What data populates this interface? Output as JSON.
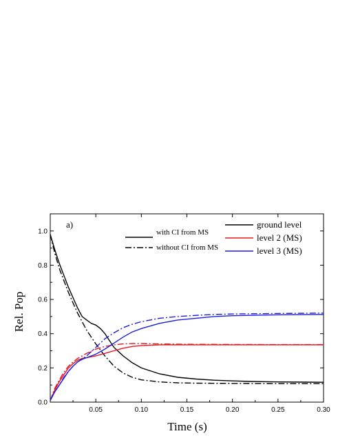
{
  "chart_data": {
    "type": "line",
    "panel_label": "a)",
    "xlabel": "Time (s)",
    "ylabel": "Rel. Pop",
    "xlim": [
      0,
      0.3
    ],
    "ylim": [
      0,
      1.1
    ],
    "xticks": [
      0.05,
      0.1,
      0.15,
      0.2,
      0.25,
      0.3
    ],
    "xtick_labels": [
      "0.05",
      "0.10",
      "0.15",
      "0.20",
      "0.25",
      "0.30"
    ],
    "yticks": [
      0.0,
      0.2,
      0.4,
      0.6,
      0.8,
      1.0
    ],
    "ytick_labels": [
      "0.0",
      "0.2",
      "0.4",
      "0.6",
      "0.8",
      "1.0"
    ],
    "grid": false,
    "style_legend": [
      {
        "label": "with CI from MS",
        "dash": "solid"
      },
      {
        "label": "without CI from MS",
        "dash": "dashdot"
      }
    ],
    "color_legend": [
      {
        "label": "ground level",
        "color": "#000000"
      },
      {
        "label": "level 2 (MS)",
        "color": "#e8141e"
      },
      {
        "label": "level 3 (MS)",
        "color": "#1c1ce0"
      }
    ],
    "series": [
      {
        "name": "ground level",
        "variant": "with CI from MS",
        "color": "#000000",
        "dash": "solid",
        "x": [
          0,
          0.005,
          0.01,
          0.015,
          0.02,
          0.025,
          0.03,
          0.035,
          0.04,
          0.045,
          0.05,
          0.055,
          0.06,
          0.065,
          0.07,
          0.08,
          0.09,
          0.1,
          0.12,
          0.14,
          0.16,
          0.18,
          0.2,
          0.22,
          0.25,
          0.28,
          0.3
        ],
        "y": [
          0.98,
          0.89,
          0.81,
          0.74,
          0.67,
          0.61,
          0.55,
          0.5,
          0.48,
          0.46,
          0.45,
          0.43,
          0.4,
          0.36,
          0.32,
          0.27,
          0.23,
          0.2,
          0.165,
          0.145,
          0.135,
          0.128,
          0.124,
          0.121,
          0.118,
          0.117,
          0.116
        ]
      },
      {
        "name": "ground level",
        "variant": "without CI from MS",
        "color": "#000000",
        "dash": "dashdot",
        "x": [
          0,
          0.005,
          0.01,
          0.015,
          0.02,
          0.025,
          0.03,
          0.035,
          0.04,
          0.05,
          0.06,
          0.07,
          0.08,
          0.09,
          0.1,
          0.12,
          0.14,
          0.16,
          0.18,
          0.2,
          0.25,
          0.3
        ],
        "y": [
          0.98,
          0.87,
          0.78,
          0.71,
          0.64,
          0.58,
          0.52,
          0.47,
          0.42,
          0.34,
          0.27,
          0.21,
          0.17,
          0.145,
          0.13,
          0.118,
          0.113,
          0.111,
          0.11,
          0.109,
          0.108,
          0.108
        ]
      },
      {
        "name": "level 2 (MS)",
        "variant": "with CI from MS",
        "color": "#e8141e",
        "dash": "solid",
        "x": [
          0,
          0.005,
          0.01,
          0.015,
          0.02,
          0.025,
          0.03,
          0.035,
          0.04,
          0.05,
          0.06,
          0.07,
          0.08,
          0.09,
          0.1,
          0.12,
          0.15,
          0.2,
          0.25,
          0.3
        ],
        "y": [
          0.01,
          0.07,
          0.12,
          0.16,
          0.2,
          0.225,
          0.245,
          0.255,
          0.26,
          0.27,
          0.285,
          0.3,
          0.315,
          0.325,
          0.33,
          0.335,
          0.335,
          0.335,
          0.335,
          0.335
        ]
      },
      {
        "name": "level 2 (MS)",
        "variant": "without CI from MS",
        "color": "#e8141e",
        "dash": "dashdot",
        "x": [
          0,
          0.005,
          0.01,
          0.015,
          0.02,
          0.025,
          0.03,
          0.04,
          0.05,
          0.06,
          0.07,
          0.08,
          0.09,
          0.1,
          0.12,
          0.15,
          0.2,
          0.25,
          0.3
        ],
        "y": [
          0.01,
          0.08,
          0.13,
          0.175,
          0.21,
          0.235,
          0.255,
          0.285,
          0.31,
          0.325,
          0.335,
          0.34,
          0.342,
          0.342,
          0.34,
          0.338,
          0.337,
          0.336,
          0.336
        ]
      },
      {
        "name": "level 3 (MS)",
        "variant": "with CI from MS",
        "color": "#1c1ce0",
        "dash": "solid",
        "x": [
          0,
          0.005,
          0.01,
          0.015,
          0.02,
          0.025,
          0.03,
          0.035,
          0.04,
          0.05,
          0.06,
          0.07,
          0.08,
          0.09,
          0.1,
          0.12,
          0.14,
          0.16,
          0.18,
          0.2,
          0.25,
          0.3
        ],
        "y": [
          0.01,
          0.06,
          0.1,
          0.14,
          0.18,
          0.21,
          0.235,
          0.25,
          0.26,
          0.28,
          0.31,
          0.345,
          0.38,
          0.41,
          0.43,
          0.46,
          0.48,
          0.49,
          0.5,
          0.505,
          0.51,
          0.512
        ]
      },
      {
        "name": "level 3 (MS)",
        "variant": "without CI from MS",
        "color": "#1c1ce0",
        "dash": "dashdot",
        "x": [
          0,
          0.005,
          0.01,
          0.015,
          0.02,
          0.025,
          0.03,
          0.04,
          0.05,
          0.06,
          0.07,
          0.08,
          0.09,
          0.1,
          0.12,
          0.14,
          0.16,
          0.18,
          0.2,
          0.25,
          0.3
        ],
        "y": [
          0.01,
          0.06,
          0.1,
          0.145,
          0.18,
          0.21,
          0.235,
          0.27,
          0.32,
          0.37,
          0.405,
          0.435,
          0.455,
          0.47,
          0.49,
          0.5,
          0.507,
          0.512,
          0.515,
          0.518,
          0.52
        ]
      }
    ]
  }
}
